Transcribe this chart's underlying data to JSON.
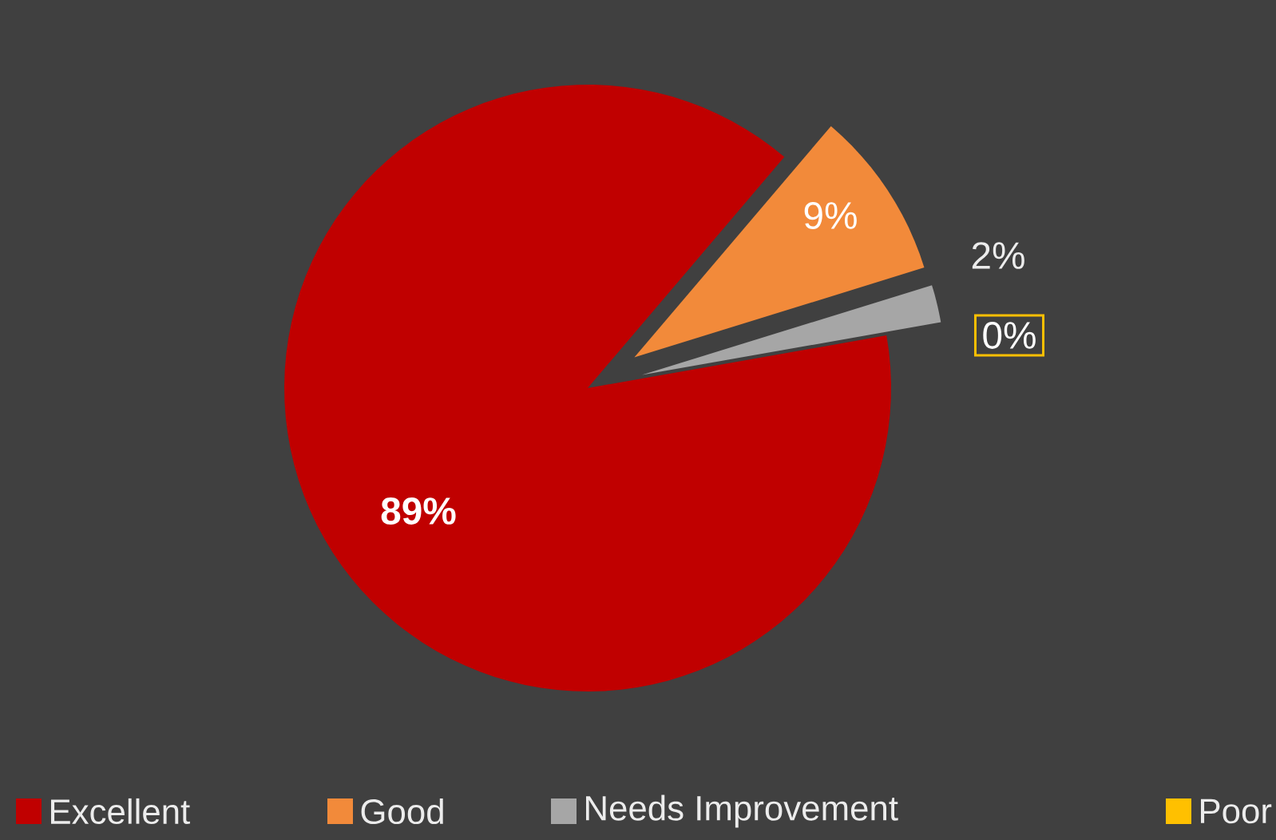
{
  "chart_data": {
    "type": "pie",
    "categories": [
      "Excellent",
      "Good",
      "Needs  Improvement",
      "Poor"
    ],
    "values": [
      89,
      9,
      2,
      0
    ],
    "colors": [
      "#c00000",
      "#f28a3a",
      "#a6a6a6",
      "#ffc000"
    ],
    "value_labels": [
      "89%",
      "9%",
      "2%",
      "0%"
    ],
    "legend": "bottom"
  }
}
